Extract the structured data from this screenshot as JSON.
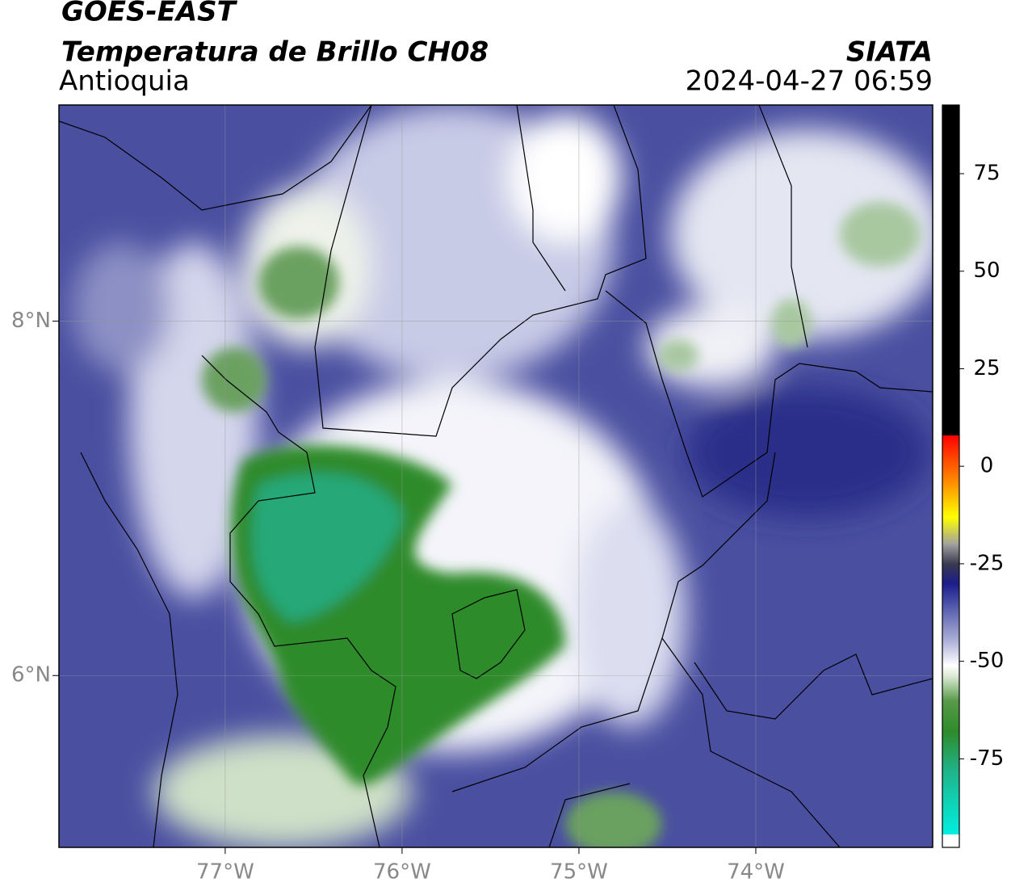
{
  "header": {
    "title": "GOES-EAST",
    "subtitle": "Temperatura de Brillo CH08",
    "region": "Antioquia",
    "source": "SIATA",
    "timestamp": "2024-04-27 06:59"
  },
  "map": {
    "xlim": [
      -77.94,
      -73.0
    ],
    "ylim": [
      5.03,
      9.22
    ],
    "xticks": [
      {
        "value": -77,
        "label": "77°W"
      },
      {
        "value": -76,
        "label": "76°W"
      },
      {
        "value": -75,
        "label": "75°W"
      },
      {
        "value": -74,
        "label": "74°W"
      }
    ],
    "yticks": [
      {
        "value": 6,
        "label": "6°N"
      },
      {
        "value": 8,
        "label": "8°N"
      }
    ],
    "grid": true
  },
  "colorbar": {
    "lim": [
      -97.7,
      92.6
    ],
    "ticks": [
      75,
      50,
      25,
      0,
      -25,
      -50,
      -75
    ],
    "stops": [
      {
        "value": -97.7,
        "color": "#ffffff"
      },
      {
        "value": -94.3,
        "color": "#ffffff"
      },
      {
        "value": -94.3,
        "color": "#00f0e0"
      },
      {
        "value": -78,
        "color": "#1fb48a"
      },
      {
        "value": -68,
        "color": "#2e8b2a"
      },
      {
        "value": -60,
        "color": "#5a9a4a"
      },
      {
        "value": -54,
        "color": "#d8e8d0"
      },
      {
        "value": -51,
        "color": "#ffffff"
      },
      {
        "value": -45,
        "color": "#b0b4d8"
      },
      {
        "value": -35,
        "color": "#4a50a8"
      },
      {
        "value": -30,
        "color": "#1c1c8a"
      },
      {
        "value": -25,
        "color": "#3a3a50"
      },
      {
        "value": -20,
        "color": "#a0a0a0"
      },
      {
        "value": -13,
        "color": "#ffff00"
      },
      {
        "value": -5,
        "color": "#ff9900"
      },
      {
        "value": 8,
        "color": "#ff0000"
      },
      {
        "value": 8,
        "color": "#000000"
      },
      {
        "value": 92.6,
        "color": "#000000"
      }
    ]
  }
}
